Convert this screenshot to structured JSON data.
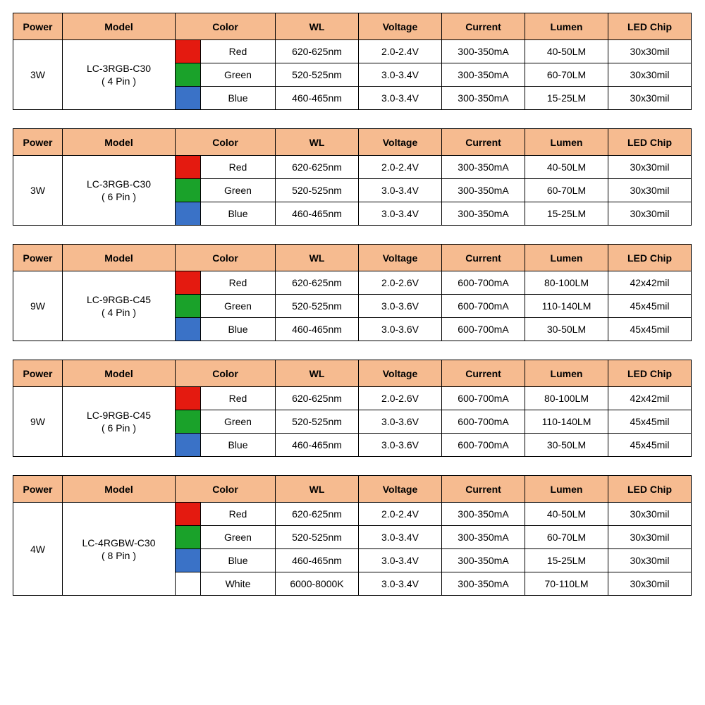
{
  "header_bg": "#f6bb90",
  "columns": {
    "power": "Power",
    "model": "Model",
    "color": "Color",
    "wl": "WL",
    "voltage": "Voltage",
    "current": "Current",
    "lumen": "Lumen",
    "chip": "LED Chip"
  },
  "swatch_colors": {
    "red": "#e41a10",
    "green": "#1aa22a",
    "blue": "#3a72c7",
    "white": "#ffffff"
  },
  "tables": [
    {
      "power": "3W",
      "model": "LC-3RGB-C30",
      "model_sub": "( 4 Pin )",
      "rows": [
        {
          "swatch": "red",
          "color": "Red",
          "wl": "620-625nm",
          "voltage": "2.0-2.4V",
          "current": "300-350mA",
          "lumen": "40-50LM",
          "chip": "30x30mil"
        },
        {
          "swatch": "green",
          "color": "Green",
          "wl": "520-525nm",
          "voltage": "3.0-3.4V",
          "current": "300-350mA",
          "lumen": "60-70LM",
          "chip": "30x30mil"
        },
        {
          "swatch": "blue",
          "color": "Blue",
          "wl": "460-465nm",
          "voltage": "3.0-3.4V",
          "current": "300-350mA",
          "lumen": "15-25LM",
          "chip": "30x30mil"
        }
      ]
    },
    {
      "power": "3W",
      "model": "LC-3RGB-C30",
      "model_sub": "( 6 Pin )",
      "rows": [
        {
          "swatch": "red",
          "color": "Red",
          "wl": "620-625nm",
          "voltage": "2.0-2.4V",
          "current": "300-350mA",
          "lumen": "40-50LM",
          "chip": "30x30mil"
        },
        {
          "swatch": "green",
          "color": "Green",
          "wl": "520-525nm",
          "voltage": "3.0-3.4V",
          "current": "300-350mA",
          "lumen": "60-70LM",
          "chip": "30x30mil"
        },
        {
          "swatch": "blue",
          "color": "Blue",
          "wl": "460-465nm",
          "voltage": "3.0-3.4V",
          "current": "300-350mA",
          "lumen": "15-25LM",
          "chip": "30x30mil"
        }
      ]
    },
    {
      "power": "9W",
      "model": "LC-9RGB-C45",
      "model_sub": "( 4 Pin )",
      "rows": [
        {
          "swatch": "red",
          "color": "Red",
          "wl": "620-625nm",
          "voltage": "2.0-2.6V",
          "current": "600-700mA",
          "lumen": "80-100LM",
          "chip": "42x42mil"
        },
        {
          "swatch": "green",
          "color": "Green",
          "wl": "520-525nm",
          "voltage": "3.0-3.6V",
          "current": "600-700mA",
          "lumen": "110-140LM",
          "chip": "45x45mil"
        },
        {
          "swatch": "blue",
          "color": "Blue",
          "wl": "460-465nm",
          "voltage": "3.0-3.6V",
          "current": "600-700mA",
          "lumen": "30-50LM",
          "chip": "45x45mil"
        }
      ]
    },
    {
      "power": "9W",
      "model": "LC-9RGB-C45",
      "model_sub": "( 6 Pin )",
      "rows": [
        {
          "swatch": "red",
          "color": "Red",
          "wl": "620-625nm",
          "voltage": "2.0-2.6V",
          "current": "600-700mA",
          "lumen": "80-100LM",
          "chip": "42x42mil"
        },
        {
          "swatch": "green",
          "color": "Green",
          "wl": "520-525nm",
          "voltage": "3.0-3.6V",
          "current": "600-700mA",
          "lumen": "110-140LM",
          "chip": "45x45mil"
        },
        {
          "swatch": "blue",
          "color": "Blue",
          "wl": "460-465nm",
          "voltage": "3.0-3.6V",
          "current": "600-700mA",
          "lumen": "30-50LM",
          "chip": "45x45mil"
        }
      ]
    },
    {
      "power": "4W",
      "model": "LC-4RGBW-C30",
      "model_sub": "( 8 Pin )",
      "rows": [
        {
          "swatch": "red",
          "color": "Red",
          "wl": "620-625nm",
          "voltage": "2.0-2.4V",
          "current": "300-350mA",
          "lumen": "40-50LM",
          "chip": "30x30mil"
        },
        {
          "swatch": "green",
          "color": "Green",
          "wl": "520-525nm",
          "voltage": "3.0-3.4V",
          "current": "300-350mA",
          "lumen": "60-70LM",
          "chip": "30x30mil"
        },
        {
          "swatch": "blue",
          "color": "Blue",
          "wl": "460-465nm",
          "voltage": "3.0-3.4V",
          "current": "300-350mA",
          "lumen": "15-25LM",
          "chip": "30x30mil"
        },
        {
          "swatch": "white",
          "color": "White",
          "wl": "6000-8000K",
          "voltage": "3.0-3.4V",
          "current": "300-350mA",
          "lumen": "70-110LM",
          "chip": "30x30mil"
        }
      ]
    }
  ]
}
